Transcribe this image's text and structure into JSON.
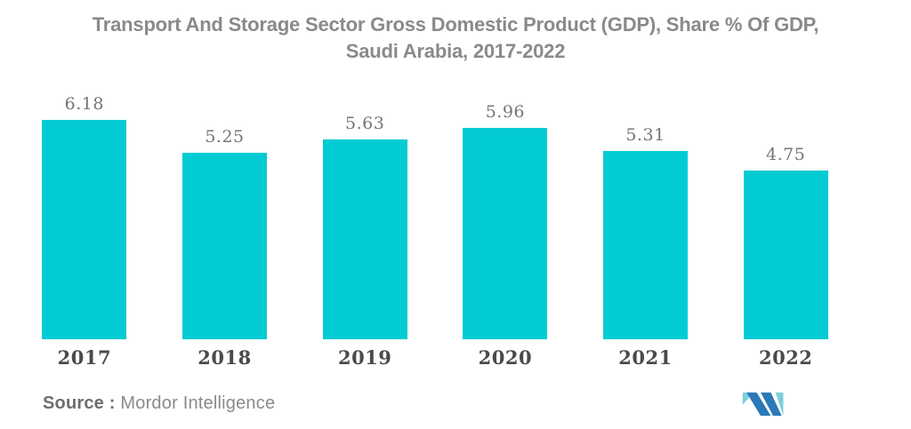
{
  "chart_data": {
    "type": "bar",
    "title": "Transport And Storage Sector Gross Domestic Product (GDP), Share % Of GDP, Saudi Arabia, 2017-2022",
    "title_lines": [
      "Transport And Storage Sector Gross Domestic Product (GDP), Share % Of GDP,",
      "Saudi Arabia, 2017-2022"
    ],
    "categories": [
      "2017",
      "2018",
      "2019",
      "2020",
      "2021",
      "2022"
    ],
    "values": [
      6.18,
      5.25,
      5.63,
      5.96,
      5.31,
      4.75
    ],
    "xlabel": "",
    "ylabel": "",
    "ylim": [
      0,
      6.5
    ],
    "grid": false,
    "legend": "none",
    "value_labels_shown": true,
    "bar_color": "#03cbd3"
  },
  "footer": {
    "source_label": "Source :",
    "source_value": "Mordor Intelligence",
    "logo": "mordor-intelligence-m-logo"
  },
  "colors": {
    "background": "#ffffff",
    "bar": "#03cbd3",
    "title_text": "#8a8a8a",
    "value_label_text": "#757575",
    "axis_label_text": "#4a4a4a",
    "source_label_text": "#6d6d6d",
    "source_value_text": "#8a8a8a",
    "logo_dark_blue": "#2b79b8",
    "logo_light_teal": "#7ccfdc"
  }
}
